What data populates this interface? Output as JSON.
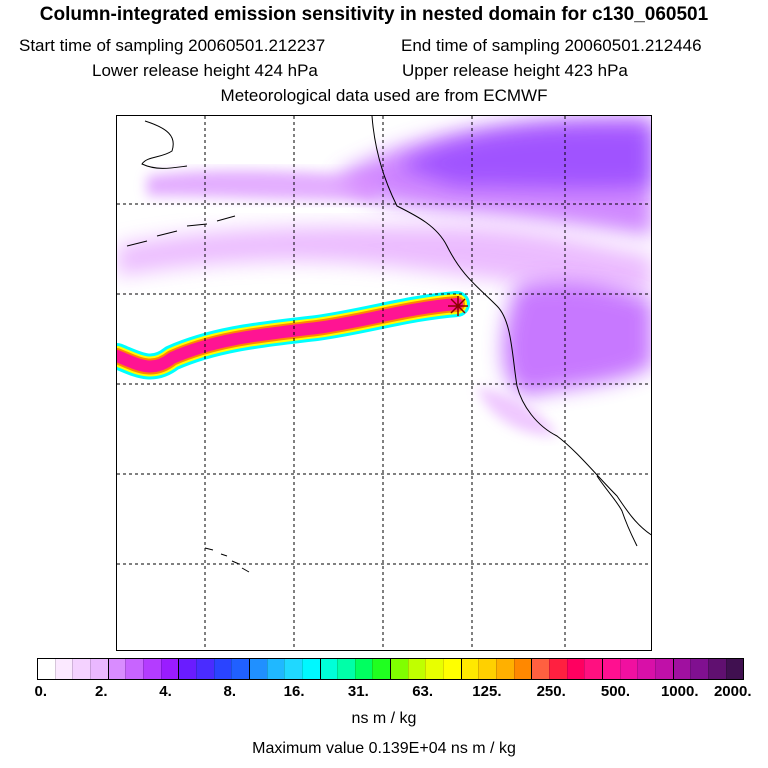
{
  "header": {
    "title": "Column-integrated emission sensitivity in nested domain for c130_060501",
    "start_label": "Start time of sampling 20060501.212237",
    "end_label": "End time of sampling 20060501.212446",
    "lower_label": "Lower release height  424 hPa",
    "upper_label": "Upper release height  423 hPa",
    "met_label": "Meteorological data used are from ECMWF"
  },
  "map": {
    "release_marker": "asterisk-marker",
    "plume_colors": {
      "low": "#f3d2ff",
      "mid": "#c060ff",
      "high": "#8a2cff",
      "core": "#ff1493",
      "ring_yellow": "#ffff00",
      "ring_cyan": "#00ffff"
    }
  },
  "colorbar": {
    "tick_labels": [
      "0.",
      "2.",
      "4.",
      "8.",
      "16.",
      "31.",
      "63.",
      "125.",
      "250.",
      "500.",
      "1000.",
      "2000."
    ],
    "colors": [
      "#ffffff",
      "#fbe9ff",
      "#f4d2ff",
      "#eab8ff",
      "#d98cff",
      "#c864ff",
      "#b43cff",
      "#9a1cff",
      "#6a1cff",
      "#4a2cff",
      "#2a44ff",
      "#2060ff",
      "#2090ff",
      "#20b8ff",
      "#20d8ff",
      "#00f8ff",
      "#00ffd8",
      "#00ffa8",
      "#00ff60",
      "#20ff20",
      "#80ff00",
      "#c0ff00",
      "#e8ff00",
      "#ffff00",
      "#ffe800",
      "#ffd000",
      "#ffb000",
      "#ff8800",
      "#ff6040",
      "#ff2040",
      "#ff0060",
      "#ff1080",
      "#ff1090",
      "#f010a0",
      "#d810a8",
      "#c010a8",
      "#a010a0",
      "#801090",
      "#601070",
      "#401050"
    ],
    "unit_label": "ns m / kg",
    "max_label": "Maximum value  0.139E+04 ns m / kg"
  }
}
